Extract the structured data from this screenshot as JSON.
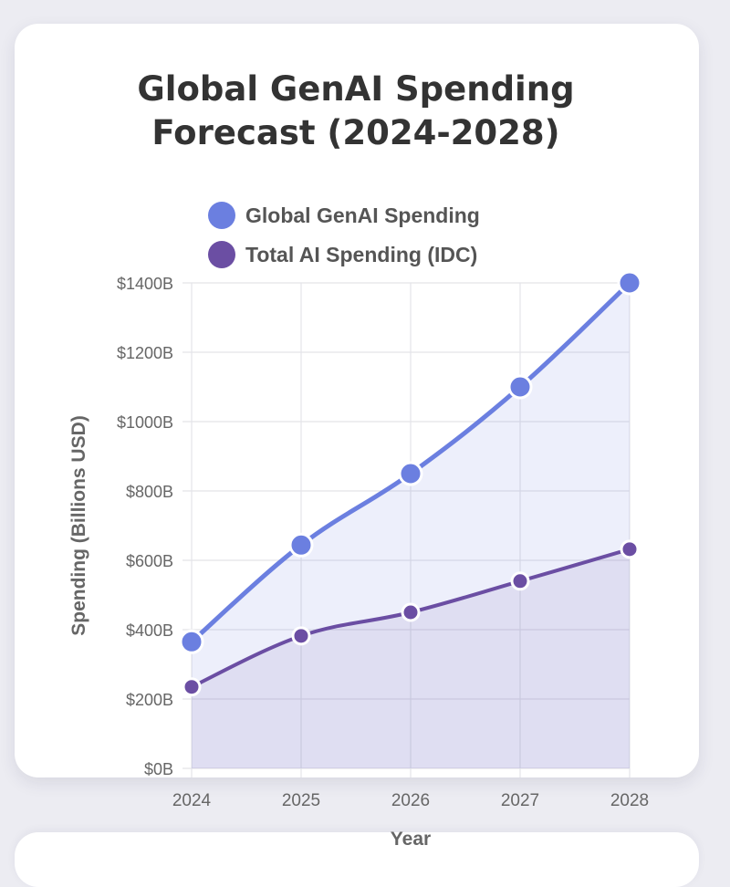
{
  "chart_data": {
    "type": "line",
    "title": [
      "Global GenAI Spending",
      "Forecast (2024-2028)"
    ],
    "xlabel": "Year",
    "ylabel": "Spending (Billions USD)",
    "categories": [
      "2024",
      "2025",
      "2026",
      "2027",
      "2028"
    ],
    "ylim": [
      0,
      1400
    ],
    "yticks": [
      0,
      200,
      400,
      600,
      800,
      1000,
      1200,
      1400
    ],
    "ytick_labels": [
      "$0B",
      "$200B",
      "$400B",
      "$600B",
      "$800B",
      "$1000B",
      "$1200B",
      "$1400B"
    ],
    "grid": true,
    "legend_position": "top-center",
    "series": [
      {
        "name": "Global GenAI Spending",
        "values": [
          365,
          644,
          850,
          1100,
          1400
        ],
        "color": "#6b7fe0",
        "fill": "rgba(107,127,224,0.12)"
      },
      {
        "name": "Total AI Spending (IDC)",
        "values": [
          235,
          382,
          450,
          540,
          632
        ],
        "color": "#6b4ea3",
        "fill": "rgba(107,78,163,0.10)"
      }
    ]
  }
}
